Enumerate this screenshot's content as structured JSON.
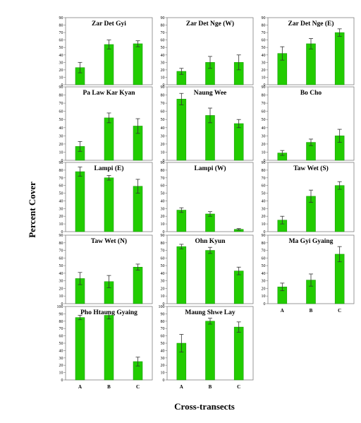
{
  "figure": {
    "ylabel": "Percent Cover",
    "xlabel": "Cross-transects"
  },
  "colors": {
    "bar": "#22cc00",
    "bar_edge": "#159000",
    "axis": "#7f7f7f",
    "error": "#333333"
  },
  "chart_data": [
    {
      "type": "bar",
      "title": "Zar Det Gyi",
      "categories": [
        "A",
        "B",
        "C"
      ],
      "values": [
        23,
        54,
        55
      ],
      "errors": [
        7,
        6,
        4
      ],
      "ylim": [
        0,
        90
      ],
      "yticks": [
        "0",
        "10",
        "20",
        "30",
        "40",
        "50",
        "60",
        "70",
        "80",
        "90"
      ],
      "xlabel": "",
      "ylabel": ""
    },
    {
      "type": "bar",
      "title": "Zar Det Nge (W)",
      "categories": [
        "A",
        "B",
        "C"
      ],
      "values": [
        18,
        30,
        30
      ],
      "errors": [
        4,
        8,
        10
      ],
      "ylim": [
        0,
        90
      ],
      "yticks": [
        "0",
        "10",
        "20",
        "30",
        "40",
        "50",
        "60",
        "70",
        "80",
        "90"
      ],
      "xlabel": "",
      "ylabel": ""
    },
    {
      "type": "bar",
      "title": "Zar Det Nge (E)",
      "categories": [
        "A",
        "B",
        "C"
      ],
      "values": [
        42,
        55,
        70
      ],
      "errors": [
        9,
        7,
        5
      ],
      "ylim": [
        0,
        90
      ],
      "yticks": [
        "0",
        "10",
        "20",
        "30",
        "40",
        "50",
        "60",
        "70",
        "80",
        "90"
      ],
      "xlabel": "",
      "ylabel": ""
    },
    {
      "type": "bar",
      "title": "Pa Law Kar Kyan",
      "categories": [
        "A",
        "B",
        "C"
      ],
      "values": [
        17,
        52,
        42
      ],
      "errors": [
        6,
        6,
        9
      ],
      "ylim": [
        0,
        90
      ],
      "yticks": [
        "0",
        "10",
        "20",
        "30",
        "40",
        "50",
        "60",
        "70",
        "80",
        "90"
      ],
      "xlabel": "",
      "ylabel": ""
    },
    {
      "type": "bar",
      "title": "Naung Wee",
      "categories": [
        "A",
        "B",
        "C"
      ],
      "values": [
        75,
        55,
        45
      ],
      "errors": [
        7,
        9,
        5
      ],
      "ylim": [
        0,
        90
      ],
      "yticks": [
        "0",
        "10",
        "20",
        "30",
        "40",
        "50",
        "60",
        "70",
        "80",
        "90"
      ],
      "xlabel": "",
      "ylabel": ""
    },
    {
      "type": "bar",
      "title": "Bo Cho",
      "categories": [
        "A",
        "B",
        "C"
      ],
      "values": [
        9,
        22,
        30
      ],
      "errors": [
        3,
        4,
        8
      ],
      "ylim": [
        0,
        90
      ],
      "yticks": [
        "0",
        "10",
        "20",
        "30",
        "40",
        "50",
        "60",
        "70",
        "80",
        "90"
      ],
      "xlabel": "",
      "ylabel": ""
    },
    {
      "type": "bar",
      "title": "Lampi (E)",
      "categories": [
        "A",
        "B",
        "C"
      ],
      "values": [
        78,
        70,
        59
      ],
      "errors": [
        6,
        3,
        9
      ],
      "ylim": [
        0,
        90
      ],
      "yticks": [
        "0",
        "10",
        "20",
        "30",
        "40",
        "50",
        "60",
        "70",
        "80",
        "90"
      ],
      "xlabel": "",
      "ylabel": ""
    },
    {
      "type": "bar",
      "title": "Lampi (W)",
      "categories": [
        "A",
        "B",
        "C"
      ],
      "values": [
        28,
        23,
        3
      ],
      "errors": [
        3,
        3,
        1
      ],
      "ylim": [
        0,
        90
      ],
      "yticks": [
        "0",
        "10",
        "20",
        "30",
        "40",
        "50",
        "60",
        "70",
        "80",
        "90"
      ],
      "xlabel": "",
      "ylabel": ""
    },
    {
      "type": "bar",
      "title": "Taw Wet (S)",
      "categories": [
        "A",
        "B",
        "C"
      ],
      "values": [
        15,
        46,
        60
      ],
      "errors": [
        5,
        8,
        5
      ],
      "ylim": [
        0,
        90
      ],
      "yticks": [
        "0",
        "10",
        "20",
        "30",
        "40",
        "50",
        "60",
        "70",
        "80",
        "90"
      ],
      "xlabel": "",
      "ylabel": ""
    },
    {
      "type": "bar",
      "title": "Taw Wet (N)",
      "categories": [
        "A",
        "B",
        "C"
      ],
      "values": [
        33,
        29,
        48
      ],
      "errors": [
        8,
        8,
        4
      ],
      "ylim": [
        0,
        90
      ],
      "yticks": [
        "0",
        "10",
        "20",
        "30",
        "40",
        "50",
        "60",
        "70",
        "80",
        "90"
      ],
      "xlabel": "",
      "ylabel": ""
    },
    {
      "type": "bar",
      "title": "Ohn Kyun",
      "categories": [
        "A",
        "B",
        "C"
      ],
      "values": [
        75,
        70,
        43
      ],
      "errors": [
        3,
        4,
        5
      ],
      "ylim": [
        0,
        90
      ],
      "yticks": [
        "0",
        "10",
        "20",
        "30",
        "40",
        "50",
        "60",
        "70",
        "80",
        "90"
      ],
      "xlabel": "",
      "ylabel": ""
    },
    {
      "type": "bar",
      "title": "Ma Gyi Gyaing",
      "categories": [
        "A",
        "B",
        "C"
      ],
      "values": [
        22,
        31,
        65
      ],
      "errors": [
        5,
        8,
        10
      ],
      "ylim": [
        0,
        90
      ],
      "yticks": [
        "0",
        "10",
        "20",
        "30",
        "40",
        "50",
        "60",
        "70",
        "80",
        "90"
      ],
      "xlabel": "",
      "ylabel": ""
    },
    {
      "type": "bar",
      "title": "Pho Htaung Gyaing",
      "categories": [
        "A",
        "B",
        "C"
      ],
      "values": [
        85,
        88,
        25
      ],
      "errors": [
        3,
        5,
        6
      ],
      "ylim": [
        0,
        100
      ],
      "yticks": [
        "0",
        "10",
        "20",
        "30",
        "40",
        "50",
        "60",
        "70",
        "80",
        "90",
        "100"
      ],
      "xlabel": "",
      "ylabel": ""
    },
    {
      "type": "bar",
      "title": "Maung Shwe Lay",
      "categories": [
        "A",
        "B",
        "C"
      ],
      "values": [
        50,
        80,
        72
      ],
      "errors": [
        12,
        4,
        7
      ],
      "ylim": [
        0,
        100
      ],
      "yticks": [
        "0",
        "10",
        "20",
        "30",
        "40",
        "50",
        "60",
        "70",
        "80",
        "90",
        "100"
      ],
      "xlabel": "",
      "ylabel": ""
    }
  ]
}
